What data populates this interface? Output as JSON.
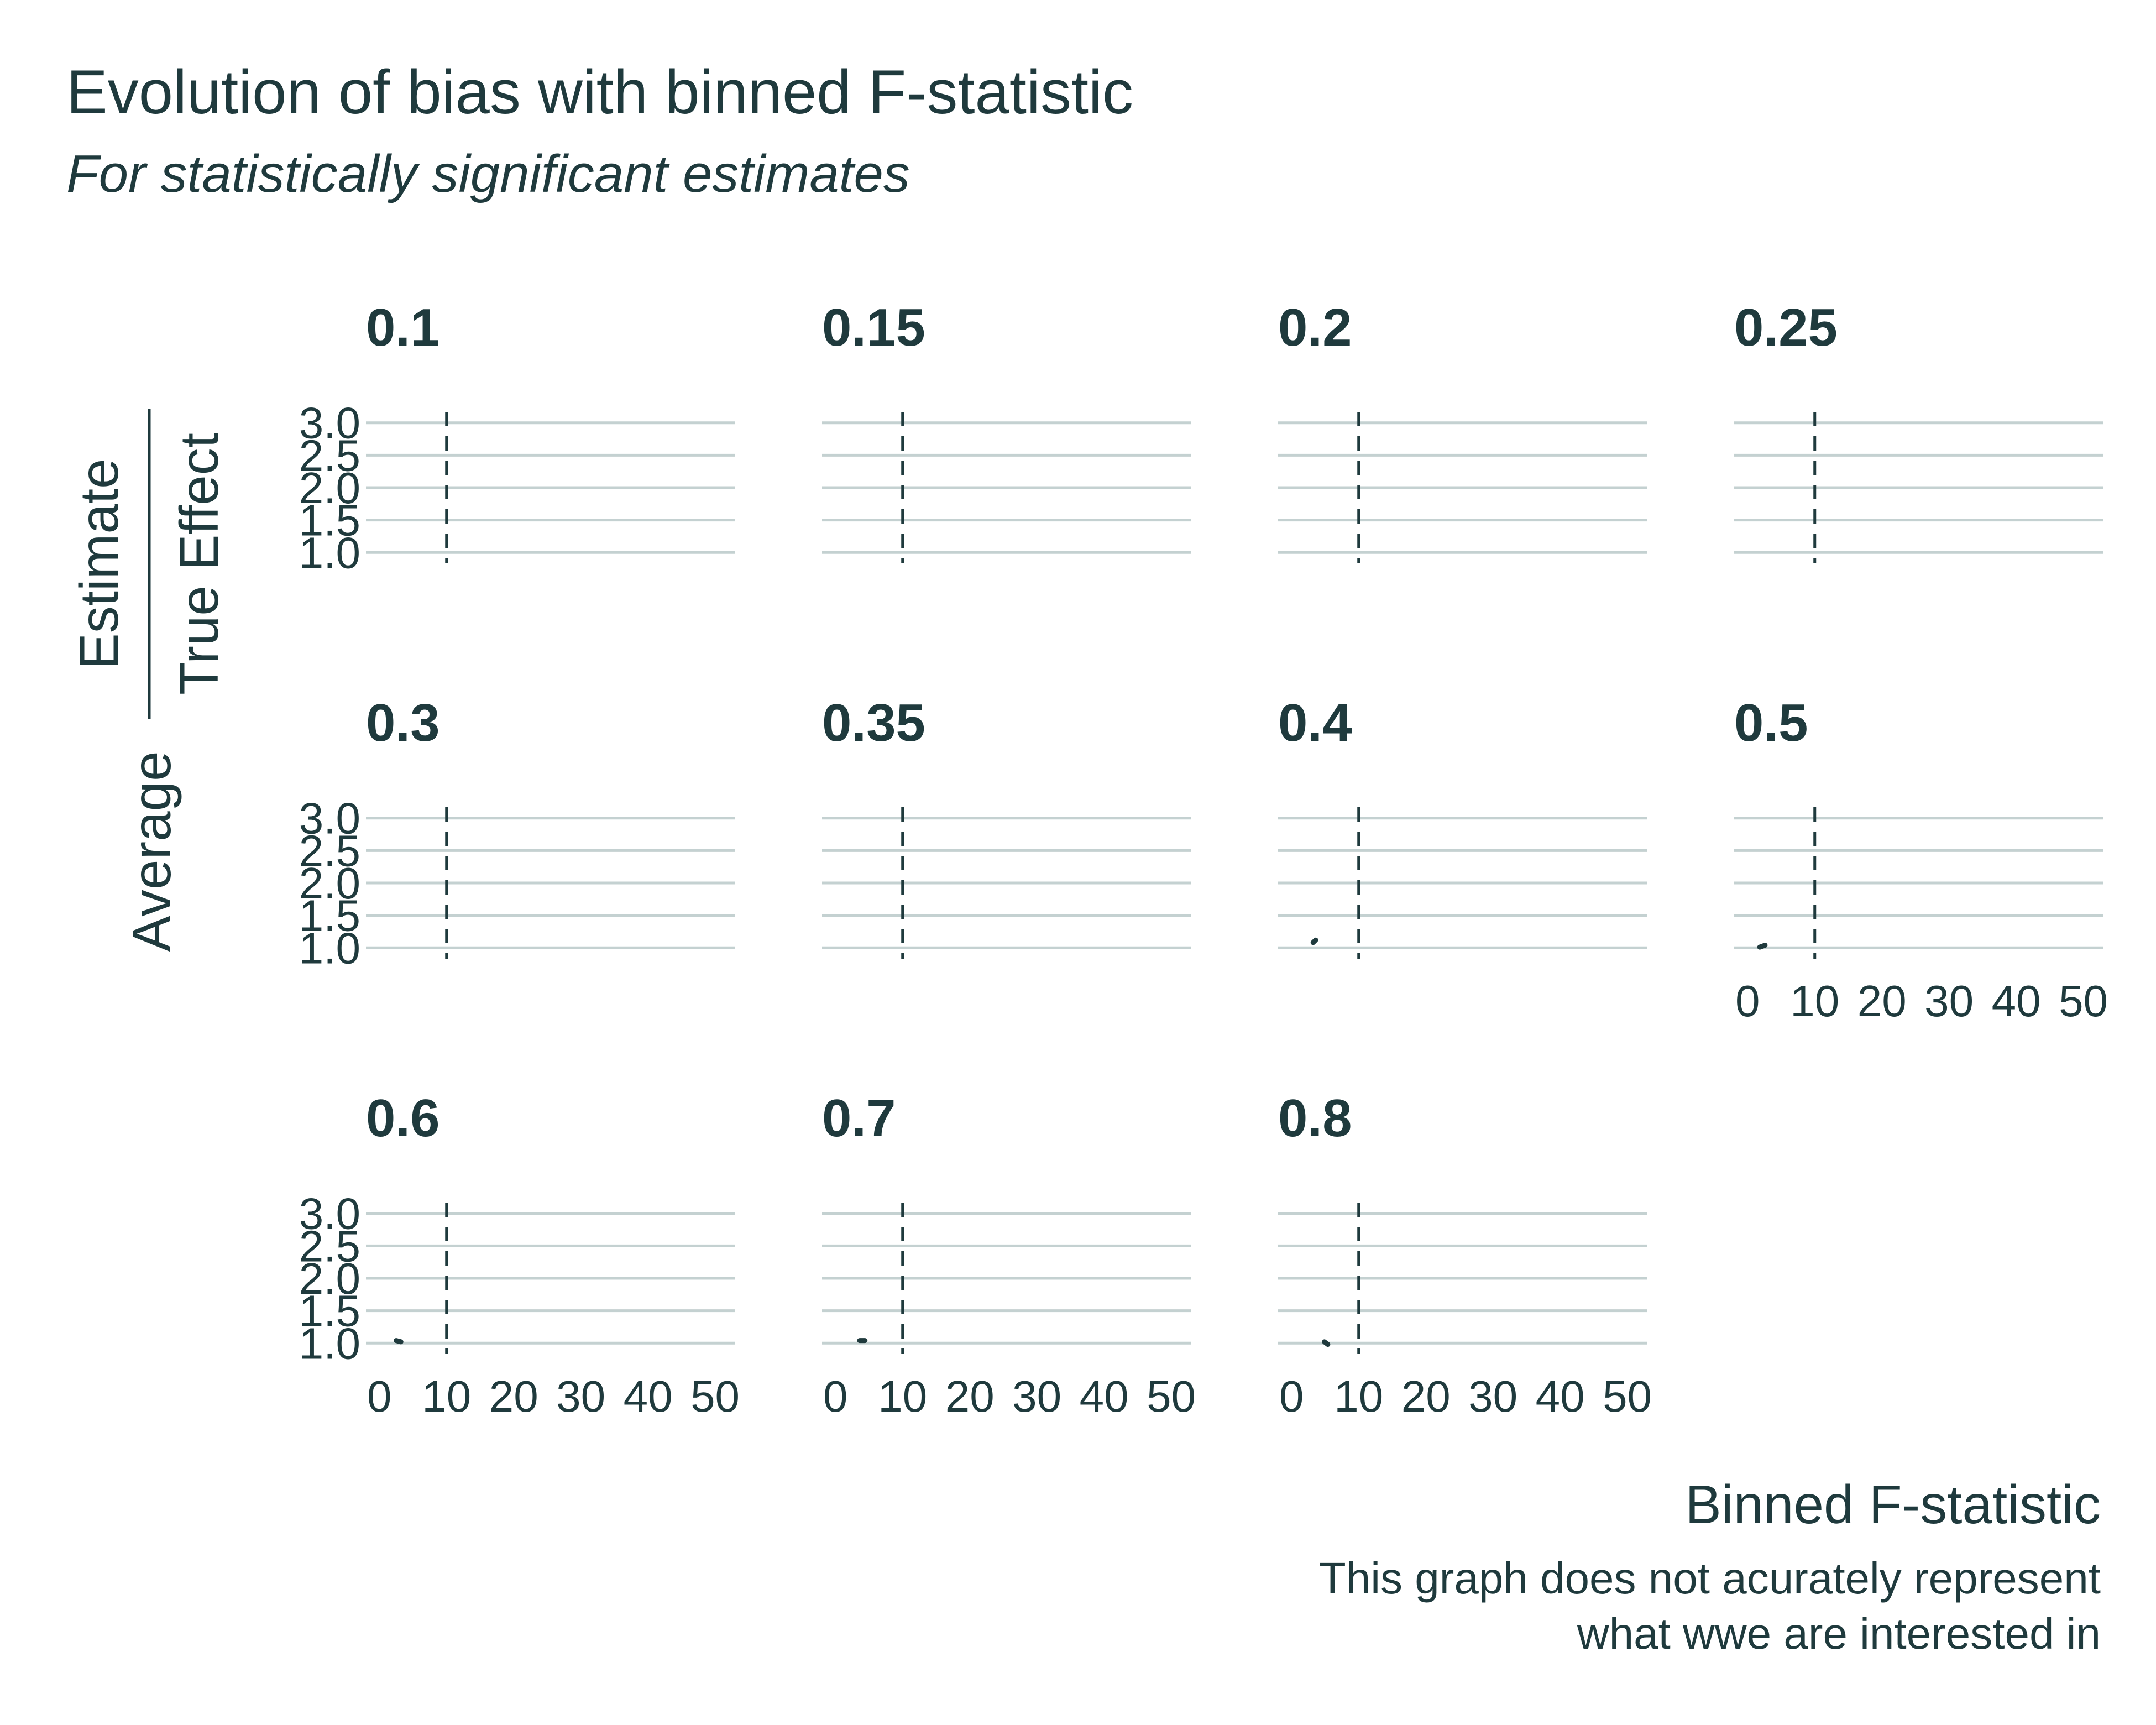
{
  "chart_data": {
    "type": "line",
    "title": "Evolution of bias with binned F-statistic",
    "subtitle": "For statistically significant estimates",
    "xlabel": "Binned F-statistic",
    "ylabel": {
      "prefix": "Average",
      "numerator": "Estimate",
      "denominator": "True Effect"
    },
    "caption": [
      "This graph does not acurately represent",
      "what wwe are interested in"
    ],
    "xlim": [
      -2,
      53
    ],
    "ylim": [
      0.9,
      3.1
    ],
    "x_ticks": [
      0,
      10,
      20,
      30,
      40,
      50
    ],
    "x_tick_labels": [
      "0",
      "10",
      "20",
      "30",
      "40",
      "50"
    ],
    "y_ticks": [
      1.0,
      1.5,
      2.0,
      2.5,
      3.0
    ],
    "y_tick_labels": [
      "1.0",
      "1.5",
      "2.0",
      "2.5",
      "3.0"
    ],
    "reference_line": {
      "x": 10,
      "style": "dashed"
    },
    "grid": "horizontal",
    "facets": [
      {
        "label": "0.1",
        "points": []
      },
      {
        "label": "0.15",
        "points": []
      },
      {
        "label": "0.2",
        "points": []
      },
      {
        "label": "0.25",
        "points": []
      },
      {
        "label": "0.3",
        "points": []
      },
      {
        "label": "0.35",
        "points": []
      },
      {
        "label": "0.4",
        "points": [
          {
            "x": 3.2,
            "y": 1.08
          },
          {
            "x": 3.6,
            "y": 1.12
          }
        ]
      },
      {
        "label": "0.5",
        "points": [
          {
            "x": 1.8,
            "y": 1.01
          },
          {
            "x": 2.6,
            "y": 1.04
          }
        ]
      },
      {
        "label": "0.6",
        "points": [
          {
            "x": 2.5,
            "y": 1.04
          },
          {
            "x": 3.2,
            "y": 1.02
          }
        ]
      },
      {
        "label": "0.7",
        "points": [
          {
            "x": 3.6,
            "y": 1.04
          },
          {
            "x": 4.4,
            "y": 1.04
          }
        ]
      },
      {
        "label": "0.8",
        "points": [
          {
            "x": 4.9,
            "y": 1.02
          },
          {
            "x": 5.4,
            "y": 0.98
          }
        ]
      }
    ]
  }
}
